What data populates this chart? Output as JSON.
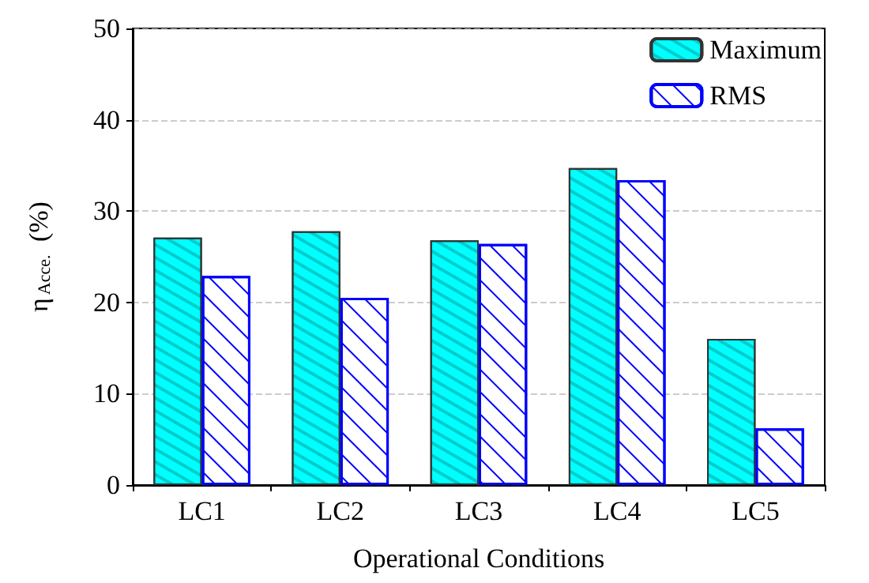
{
  "chart_data": {
    "type": "bar",
    "xlabel": "Operational Conditions",
    "ylabel": "η$_{Acce.}$ (%)",
    "categories": [
      "LC1",
      "LC2",
      "LC3",
      "LC4",
      "LC5"
    ],
    "series": [
      {
        "name": "Maximum",
        "color": "#00ffff",
        "values": [
          27.1,
          27.8,
          26.8,
          34.7,
          16.0
        ]
      },
      {
        "name": "RMS",
        "color": "#0000ff",
        "values": [
          22.9,
          20.5,
          26.4,
          33.4,
          6.2
        ]
      }
    ],
    "ylim": [
      0,
      50
    ],
    "yticks": [
      0,
      10,
      20,
      30,
      40,
      50
    ],
    "grid": "y",
    "legend": "top right"
  }
}
